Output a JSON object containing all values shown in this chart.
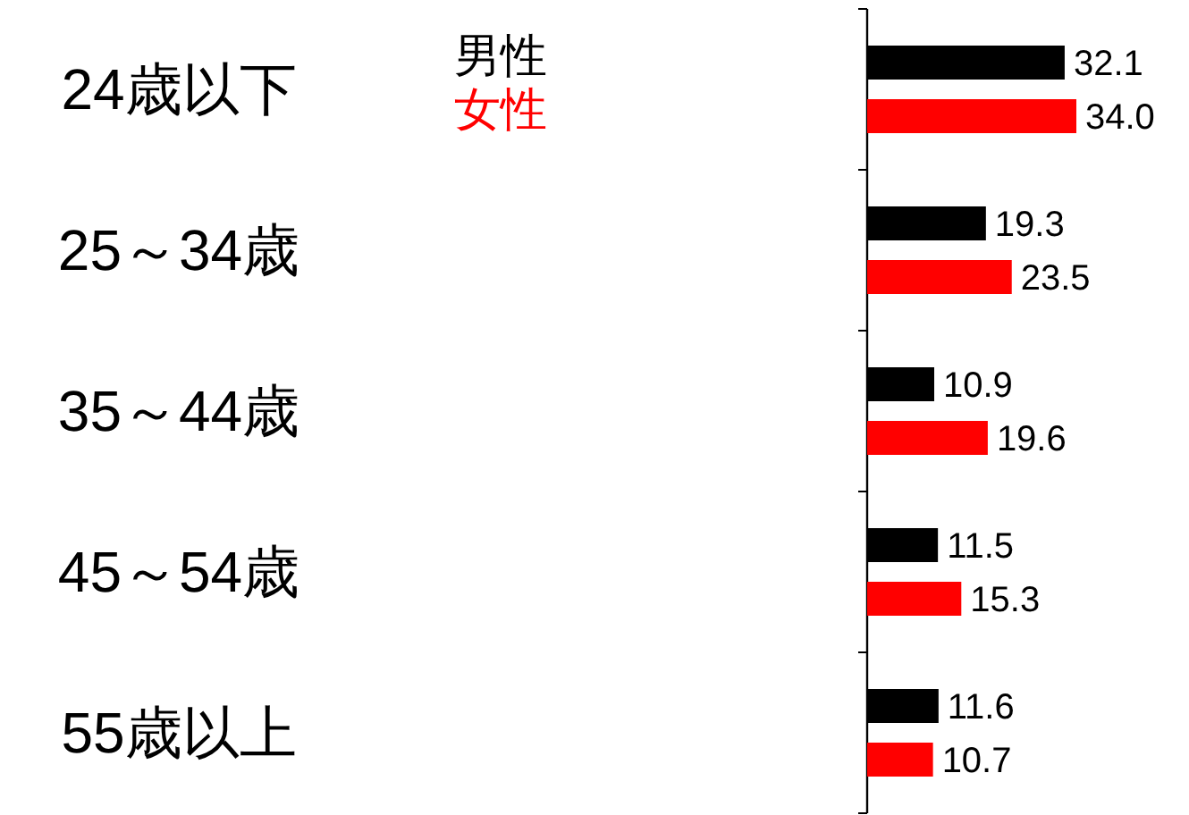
{
  "chart_data": {
    "type": "bar",
    "orientation": "horizontal",
    "categories": [
      "24歳以下",
      "25～34歳",
      "35～44歳",
      "45～54歳",
      "55歳以上"
    ],
    "series": [
      {
        "name": "男性",
        "color": "#000000",
        "values": [
          32.1,
          19.3,
          10.9,
          11.5,
          11.6
        ],
        "value_labels": [
          "32.1",
          "19.3",
          "10.9",
          "11.5",
          "11.6"
        ]
      },
      {
        "name": "女性",
        "color": "#ff0000",
        "values": [
          34.0,
          23.5,
          19.6,
          15.3,
          10.7
        ],
        "value_labels": [
          "34.0",
          "23.5",
          "19.6",
          "15.3",
          "10.7"
        ]
      }
    ],
    "legend": "top left"
  }
}
